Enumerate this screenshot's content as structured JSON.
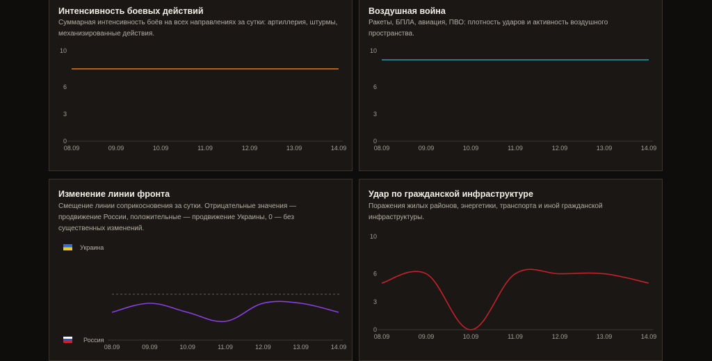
{
  "panels": [
    {
      "id": "combat",
      "title": "Интенсивность боевых действий",
      "description": "Суммарная интенсивность боёв на всех направлениях за сутки: артиллерия, штурмы, механизированные действия."
    },
    {
      "id": "air",
      "title": "Воздушная война",
      "description": "Ракеты, БПЛА, авиация, ПВО: плотность ударов и активность воздушного пространства."
    },
    {
      "id": "front",
      "title": "Изменение линии фронта",
      "description": "Смещение линии соприкосновения за сутки. Отрицательные значения — продвижение России, положительные — продвижение Украины, 0 — без существенных изменений."
    },
    {
      "id": "civil",
      "title": "Удар по гражданской инфраструктуре",
      "description": "Поражения жилых районов, энергетики, транспорта и иной гражданской инфраструктуры."
    }
  ],
  "chart_data": [
    {
      "id": "combat",
      "type": "line",
      "categories": [
        "08.09",
        "09.09",
        "10.09",
        "11.09",
        "12.09",
        "13.09",
        "14.09"
      ],
      "series": [
        {
          "values": [
            8,
            8,
            8,
            8,
            8,
            8,
            8
          ],
          "color": "#e07a20"
        }
      ],
      "yticks": [
        "0",
        "3",
        "6",
        "10"
      ],
      "ylim": [
        0,
        10
      ],
      "grid": false
    },
    {
      "id": "air",
      "type": "line",
      "categories": [
        "08.09",
        "09.09",
        "10.09",
        "11.09",
        "12.09",
        "13.09",
        "14.09"
      ],
      "series": [
        {
          "values": [
            9,
            9,
            9,
            9,
            9,
            9,
            9
          ],
          "color": "#1fa3a8"
        }
      ],
      "yticks": [
        "0",
        "3",
        "6",
        "10"
      ],
      "ylim": [
        0,
        10
      ],
      "grid": false
    },
    {
      "id": "front",
      "type": "line",
      "categories": [
        "08.09",
        "09.09",
        "10.09",
        "11.09",
        "12.09",
        "13.09",
        "14.09"
      ],
      "series": [
        {
          "values": [
            -1,
            0,
            -1,
            -2,
            0,
            0,
            -1
          ],
          "color": "#8a3fe0"
        }
      ],
      "ylim": [
        -5,
        5
      ],
      "zero_line": true,
      "legend": [
        {
          "label": "Украина",
          "flag": "ua",
          "position": "top-left"
        },
        {
          "label": "Россия",
          "flag": "ru",
          "position": "bottom-left"
        }
      ],
      "grid": false
    },
    {
      "id": "civil",
      "type": "line",
      "categories": [
        "08.09",
        "09.09",
        "10.09",
        "11.09",
        "12.09",
        "13.09",
        "14.09"
      ],
      "series": [
        {
          "values": [
            5,
            6,
            0,
            6,
            6,
            6,
            5
          ],
          "color": "#c4222a"
        }
      ],
      "yticks": [
        "0",
        "3",
        "6",
        "10"
      ],
      "ylim": [
        0,
        10
      ],
      "grid": false
    }
  ],
  "colors": {
    "background": "#0f0d0b",
    "panel": "#1b1714",
    "border": "#3a342d",
    "axis": "#3f3933",
    "zero_line": "#6a625a"
  }
}
